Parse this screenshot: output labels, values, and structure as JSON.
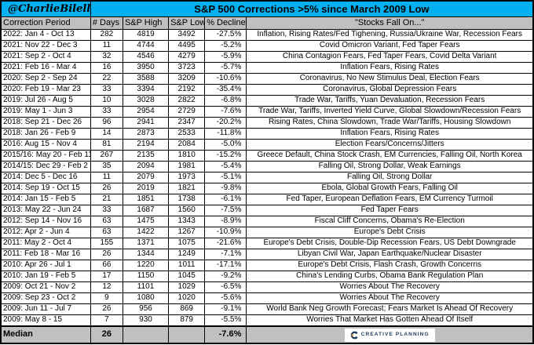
{
  "header": {
    "handle": "@CharlieBilello",
    "title": "S&P 500 Corrections >5% since March 2009 Low"
  },
  "colors": {
    "title_bg": "#00B0F0",
    "header_bg": "#C0C0C0",
    "median_bg": "#C0C0C0",
    "border": "#000000",
    "logo_navy": "#1B3A5E",
    "logo_gold": "#C9A158"
  },
  "chart_data": {
    "type": "table",
    "title": "S&P 500 Corrections >5% since March 2009 Low",
    "columns": [
      "Correction Period",
      "# Days",
      "S&P High",
      "S&P Low",
      "% Decline",
      "\"Stocks Fall On...\""
    ],
    "rows": [
      {
        "period": "2022: Jan 4 - Oct 13",
        "days": "282",
        "high": "4819",
        "low": "3492",
        "decline": "-27.5%",
        "reason": "Inflation, Rising Rates/Fed Tighening, Russia/Ukraine War, Recession Fears"
      },
      {
        "period": "2021: Nov 22 - Dec 3",
        "days": "11",
        "high": "4744",
        "low": "4495",
        "decline": "-5.2%",
        "reason": "Covid Omicron Variant, Fed Taper Fears"
      },
      {
        "period": "2021: Sep 2 - Oct 4",
        "days": "32",
        "high": "4546",
        "low": "4279",
        "decline": "-5.9%",
        "reason": "China Contagion Fears, Fed Taper Fears, Covid Delta Variant"
      },
      {
        "period": "2021: Feb 16 - Mar 4",
        "days": "16",
        "high": "3950",
        "low": "3723",
        "decline": "-5.7%",
        "reason": "Inflation Fears, Rising Rates"
      },
      {
        "period": "2020: Sep 2 - Sep 24",
        "days": "22",
        "high": "3588",
        "low": "3209",
        "decline": "-10.6%",
        "reason": "Coronavirus, No New Stimulus Deal, Election Fears"
      },
      {
        "period": "2020: Feb 19 - Mar 23",
        "days": "33",
        "high": "3394",
        "low": "2192",
        "decline": "-35.4%",
        "reason": "Coronavirus, Global Depression Fears"
      },
      {
        "period": "2019: Jul 26 - Aug 5",
        "days": "10",
        "high": "3028",
        "low": "2822",
        "decline": "-6.8%",
        "reason": "Trade War, Tariffs, Yuan Devaluation, Recession Fears"
      },
      {
        "period": "2019: May 1 - Jun 3",
        "days": "33",
        "high": "2954",
        "low": "2729",
        "decline": "-7.6%",
        "reason": "Trade War, Tariffs, Inverted Yield Curve, Global Slowdown/Recession Fears"
      },
      {
        "period": "2018: Sep 21 - Dec 26",
        "days": "96",
        "high": "2941",
        "low": "2347",
        "decline": "-20.2%",
        "reason": "Rising Rates, China Slowdown, Trade War/Tariffs, Housing Slowdown"
      },
      {
        "period": "2018: Jan 26 - Feb 9",
        "days": "14",
        "high": "2873",
        "low": "2533",
        "decline": "-11.8%",
        "reason": "Inflation Fears, Rising Rates"
      },
      {
        "period": "2016: Aug 15 - Nov 4",
        "days": "81",
        "high": "2194",
        "low": "2084",
        "decline": "-5.0%",
        "reason": "Election Fears/Concerns/Jitters"
      },
      {
        "period": "2015/16: May 20 - Feb 11",
        "days": "267",
        "high": "2135",
        "low": "1810",
        "decline": "-15.2%",
        "reason": "Greece Default, China Stock Crash, EM Currencies, Falling Oil, North Korea"
      },
      {
        "period": "2014/15: Dec 29 - Feb 2",
        "days": "35",
        "high": "2094",
        "low": "1981",
        "decline": "-5.4%",
        "reason": "Falling Oil, Strong Dollar, Weak Earnings"
      },
      {
        "period": "2014: Dec 5 - Dec 16",
        "days": "11",
        "high": "2079",
        "low": "1973",
        "decline": "-5.1%",
        "reason": "Falling Oil, Strong Dollar"
      },
      {
        "period": "2014: Sep 19 - Oct 15",
        "days": "26",
        "high": "2019",
        "low": "1821",
        "decline": "-9.8%",
        "reason": "Ebola, Global Growth Fears, Falling Oil"
      },
      {
        "period": "2014: Jan 15 - Feb 5",
        "days": "21",
        "high": "1851",
        "low": "1738",
        "decline": "-6.1%",
        "reason": "Fed Taper, European Deflation Fears, EM Currency Turmoil"
      },
      {
        "period": "2013: May 22 - Jun 24",
        "days": "33",
        "high": "1687",
        "low": "1560",
        "decline": "-7.5%",
        "reason": "Fed Taper Fears"
      },
      {
        "period": "2012: Sep 14 - Nov 16",
        "days": "63",
        "high": "1475",
        "low": "1343",
        "decline": "-8.9%",
        "reason": "Fiscal Cliff Concerns, Obama's Re-Election"
      },
      {
        "period": "2012: Apr 2 - Jun 4",
        "days": "63",
        "high": "1422",
        "low": "1267",
        "decline": "-10.9%",
        "reason": "Europe's Debt Crisis"
      },
      {
        "period": "2011: May 2 - Oct 4",
        "days": "155",
        "high": "1371",
        "low": "1075",
        "decline": "-21.6%",
        "reason": "Europe's Debt Crisis, Double-Dip Recession Fears, US Debt Downgrade"
      },
      {
        "period": "2011: Feb 18 - Mar 16",
        "days": "26",
        "high": "1344",
        "low": "1249",
        "decline": "-7.1%",
        "reason": "Libyan Civil War, Japan Earthquake/Nuclear Disaster"
      },
      {
        "period": "2010: Apr 26 - Jul 1",
        "days": "66",
        "high": "1220",
        "low": "1011",
        "decline": "-17.1%",
        "reason": "Europe's Debt Crisis, Flash Crash, Growth Concerns"
      },
      {
        "period": "2010: Jan 19 - Feb 5",
        "days": "17",
        "high": "1150",
        "low": "1045",
        "decline": "-9.2%",
        "reason": "China's Lending Curbs, Obama Bank Regulation Plan"
      },
      {
        "period": "2009: Oct 21 - Nov 2",
        "days": "12",
        "high": "1101",
        "low": "1029",
        "decline": "-6.5%",
        "reason": "Worries About The Recovery"
      },
      {
        "period": "2009: Sep 23 - Oct 2",
        "days": "9",
        "high": "1080",
        "low": "1020",
        "decline": "-5.6%",
        "reason": "Worries About The Recovery"
      },
      {
        "period": "2009: Jun 11 - Jul 7",
        "days": "26",
        "high": "956",
        "low": "869",
        "decline": "-9.1%",
        "reason": "World Bank Neg Growth Forecast; Fears Market Is Ahead Of Recovery"
      },
      {
        "period": "2009: May 8 - 15",
        "days": "7",
        "high": "930",
        "low": "879",
        "decline": "-5.5%",
        "reason": "Worries That Market Has Gotten Ahead Of Itself"
      }
    ],
    "median": {
      "label": "Median",
      "days": "26",
      "high": "",
      "low": "",
      "decline": "-7.6%"
    }
  },
  "logo": {
    "text": "CREATIVE PLANNING",
    "icon": "creative-planning-c-icon"
  }
}
